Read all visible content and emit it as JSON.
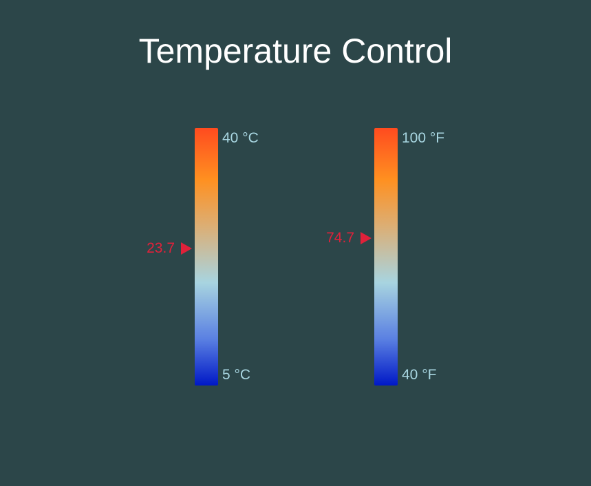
{
  "title": "Temperature Control",
  "colors": {
    "background": "#2c4649",
    "scale_label": "#a9d7e2",
    "pointer": "#e0213a",
    "gradient_hot": "#ff4b1f",
    "gradient_cold": "#0018c6"
  },
  "icons": {
    "pointer": "triangle-right-icon"
  },
  "gauges": [
    {
      "unit": "°C",
      "max_label": "40 °C",
      "min_label": "5 °C",
      "min": 5,
      "max": 40,
      "value": 23.7,
      "value_label": "23.7"
    },
    {
      "unit": "°F",
      "max_label": "100 °F",
      "min_label": "40 °F",
      "min": 40,
      "max": 100,
      "value": 74.7,
      "value_label": "74.7"
    }
  ]
}
